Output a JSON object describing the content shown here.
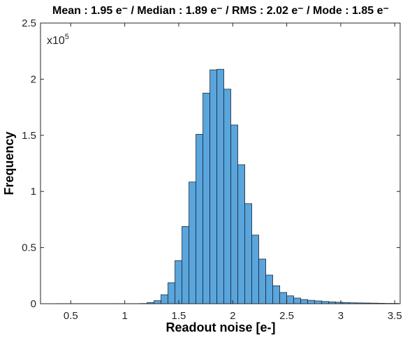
{
  "chart_data": {
    "type": "bar",
    "subtype": "histogram",
    "title": "Mean : 1.95 e⁻ / Median : 1.89 e⁻ / RMS : 2.02 e⁻ / Mode : 1.85 e⁻",
    "xlabel": "Readout noise [e-]",
    "ylabel": "Frequency",
    "y_multiplier": "x10",
    "y_multiplier_exp": "5",
    "xlim": [
      0.22,
      3.55
    ],
    "ylim": [
      0,
      2.5
    ],
    "xticks": [
      "0.5",
      "1",
      "1.5",
      "2",
      "2.5",
      "3",
      "3.5"
    ],
    "xtick_values": [
      0.5,
      1,
      1.5,
      2,
      2.5,
      3,
      3.5
    ],
    "yticks": [
      "0",
      "0.5",
      "1",
      "1.5",
      "2",
      "2.5"
    ],
    "ytick_values": [
      0,
      0.5,
      1,
      1.5,
      2,
      2.5
    ],
    "grid": false,
    "bin_start": 0.365,
    "bin_width": 0.0647,
    "values": [
      0.001,
      0.001,
      0.001,
      0.001,
      0.001,
      0.001,
      0.001,
      0.001,
      0.001,
      0.001,
      0.001,
      0.001,
      0.002,
      0.01,
      0.027,
      0.08,
      0.187,
      0.384,
      0.688,
      1.084,
      1.509,
      1.876,
      2.083,
      2.088,
      1.911,
      1.592,
      1.238,
      0.891,
      0.611,
      0.398,
      0.255,
      0.16,
      0.1,
      0.07,
      0.05,
      0.037,
      0.03,
      0.025,
      0.02,
      0.016,
      0.013,
      0.01,
      0.008,
      0.007,
      0.006,
      0.005,
      0.004,
      0.003,
      0.003
    ],
    "colors": {
      "bar_fill": "#5aa5dc",
      "bar_edge": "#1c2b3a",
      "axis": "#262626"
    }
  }
}
